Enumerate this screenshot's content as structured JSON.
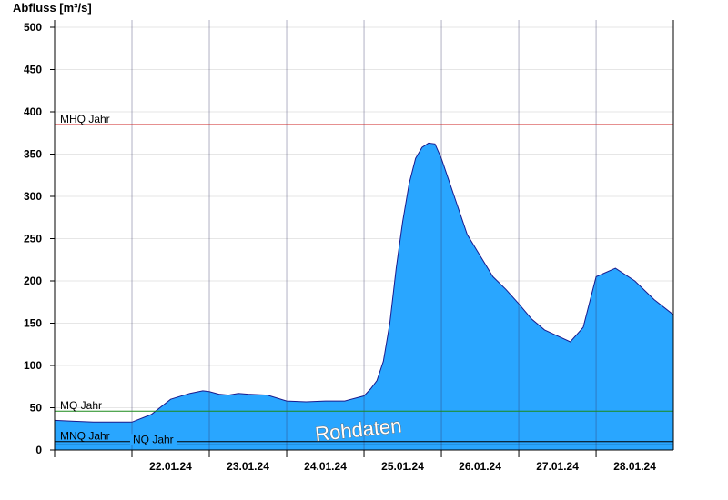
{
  "chart_data": {
    "type": "area",
    "ylabel": "Abfluss [m³/s]",
    "watermark": "Rohdaten",
    "ylim": [
      0,
      510
    ],
    "yticks": [
      0,
      50,
      100,
      150,
      200,
      250,
      300,
      350,
      400,
      450,
      500
    ],
    "xlim": [
      "21.01.24 00:00",
      "28.01.24 23:59"
    ],
    "x_tick_labels": [
      "22.01.24",
      "23.01.24",
      "24.01.24",
      "25.01.24",
      "26.01.24",
      "27.01.24",
      "28.01.24"
    ],
    "grid": true,
    "area_color": "#29a6ff",
    "line_color": "#1a1a8c",
    "reference_lines": [
      {
        "name": "MHQ Jahr",
        "value": 385,
        "color": "#cc2222"
      },
      {
        "name": "MQ Jahr",
        "value": 46,
        "color": "#1a8a1a"
      },
      {
        "name": "MNQ Jahr",
        "value": 10,
        "color": "#000000"
      },
      {
        "name": "NQ Jahr",
        "value": 6,
        "color": "#000000"
      }
    ],
    "series": [
      {
        "x": [
          "21.01.24 00:00",
          "21.01.24 06:00",
          "21.01.24 12:00",
          "21.01.24 18:00",
          "22.01.24 00:00",
          "22.01.24 06:00",
          "22.01.24 12:00",
          "22.01.24 18:00",
          "22.01.24 22:00",
          "23.01.24 00:00",
          "23.01.24 03:00",
          "23.01.24 06:00",
          "23.01.24 09:00",
          "23.01.24 12:00",
          "23.01.24 18:00",
          "24.01.24 00:00",
          "24.01.24 06:00",
          "24.01.24 12:00",
          "24.01.24 18:00",
          "25.01.24 00:00",
          "25.01.24 02:00",
          "25.01.24 04:00",
          "25.01.24 06:00",
          "25.01.24 08:00",
          "25.01.24 10:00",
          "25.01.24 12:00",
          "25.01.24 14:00",
          "25.01.24 16:00",
          "25.01.24 18:00",
          "25.01.24 20:00",
          "25.01.24 22:00",
          "26.01.24 00:00",
          "26.01.24 04:00",
          "26.01.24 08:00",
          "26.01.24 12:00",
          "26.01.24 16:00",
          "26.01.24 20:00",
          "27.01.24 00:00",
          "27.01.24 04:00",
          "27.01.24 08:00",
          "27.01.24 12:00",
          "27.01.24 16:00",
          "27.01.24 20:00",
          "28.01.24 00:00",
          "28.01.24 06:00",
          "28.01.24 12:00",
          "28.01.24 18:00",
          "28.01.24 23:59"
        ],
        "y": [
          35,
          34,
          33,
          33,
          33,
          42,
          60,
          67,
          70,
          69,
          66,
          65,
          67,
          66,
          65,
          58,
          57,
          58,
          58,
          64,
          72,
          82,
          105,
          150,
          215,
          270,
          315,
          345,
          358,
          363,
          362,
          345,
          300,
          255,
          230,
          205,
          190,
          173,
          155,
          142,
          135,
          128,
          145,
          205,
          215,
          200,
          178,
          160
        ]
      }
    ]
  }
}
